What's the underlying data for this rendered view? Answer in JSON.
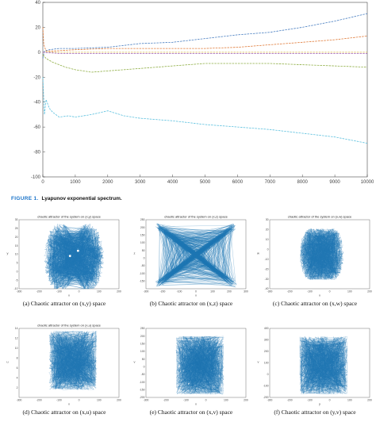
{
  "figure1": {
    "label": "FIGURE 1.",
    "caption": "Lyapunov exponential spectrum."
  },
  "chart_data": [
    {
      "type": "line",
      "title": "",
      "xlabel": "",
      "ylabel": "",
      "xlim": [
        0,
        10000
      ],
      "ylim": [
        -100,
        40
      ],
      "xticks": [
        0,
        1000,
        2000,
        3000,
        4000,
        5000,
        6000,
        7000,
        8000,
        9000,
        10000
      ],
      "yticks": [
        -100,
        -80,
        -60,
        -40,
        -20,
        0,
        20,
        40
      ],
      "series": [
        {
          "color": "#4a7fc1",
          "x": [
            0,
            50,
            200,
            500,
            1000,
            2000,
            3000,
            4000,
            5000,
            6000,
            7000,
            8000,
            9000,
            10000
          ],
          "y": [
            -5,
            1,
            2,
            3,
            3,
            4,
            7,
            8,
            11,
            14,
            16,
            20,
            25,
            31
          ]
        },
        {
          "color": "#e07b39",
          "x": [
            0,
            30,
            100,
            300,
            1000,
            2000,
            3000,
            4000,
            5000,
            6000,
            7000,
            8000,
            9000,
            10000
          ],
          "y": [
            20,
            6,
            1,
            1,
            2,
            3,
            3,
            3,
            3,
            4,
            6,
            8,
            10,
            13
          ]
        },
        {
          "color": "#d9b84a",
          "x": [
            0,
            500,
            1000,
            2000,
            3000,
            4000,
            5000,
            6000,
            7000,
            8000,
            9000,
            10000
          ],
          "y": [
            0,
            0,
            0,
            0,
            0,
            0,
            0,
            0,
            0,
            0,
            0,
            0
          ]
        },
        {
          "color": "#9b59b6",
          "x": [
            0,
            500,
            1000,
            2000,
            3000,
            4000,
            5000,
            6000,
            7000,
            8000,
            9000,
            10000
          ],
          "y": [
            0,
            -1,
            -1,
            -1,
            -1,
            -1,
            -1,
            -1,
            -1,
            -1,
            -1,
            -1
          ]
        },
        {
          "color": "#8fae45",
          "x": [
            0,
            100,
            300,
            700,
            1000,
            1500,
            2000,
            3000,
            4000,
            5000,
            6000,
            7000,
            8000,
            9000,
            10000
          ],
          "y": [
            -2,
            -5,
            -8,
            -12,
            -14,
            -16,
            -15,
            -13,
            -11,
            -9,
            -9,
            -9,
            -10,
            -11,
            -12
          ]
        },
        {
          "color": "#5bc0de",
          "x": [
            0,
            50,
            100,
            200,
            300,
            500,
            800,
            1000,
            1500,
            2000,
            2500,
            3000,
            4000,
            5000,
            6000,
            7000,
            8000,
            9000,
            10000
          ],
          "y": [
            -20,
            -50,
            -38,
            -45,
            -48,
            -52,
            -51,
            -52,
            -50,
            -47,
            -51,
            -53,
            -55,
            -58,
            -60,
            -62,
            -65,
            -68,
            -73
          ]
        }
      ]
    },
    {
      "type": "scatter",
      "title": "chaotic attractor of the system on (x,y) space",
      "xlabel": "x",
      "ylabel": "y",
      "xlim": [
        -300,
        200
      ],
      "ylim": [
        -10,
        30
      ],
      "xticks": [
        -300,
        -200,
        -100,
        0,
        100,
        200
      ],
      "yticks": [
        -10,
        -5,
        0,
        5,
        10,
        15,
        20,
        25,
        30
      ]
    },
    {
      "type": "scatter",
      "title": "chaotic attractor of the system on (x,z) space",
      "xlabel": "x",
      "ylabel": "z",
      "xlim": [
        -300,
        300
      ],
      "ylim": [
        -200,
        250
      ],
      "xticks": [
        -300,
        -200,
        -100,
        0,
        100,
        200,
        300
      ],
      "yticks": [
        -150,
        -100,
        -50,
        0,
        50,
        100,
        150,
        200,
        250
      ]
    },
    {
      "type": "scatter",
      "title": "chaotic attractor of the system on (x,w) space",
      "xlabel": "x",
      "ylabel": "w",
      "xlim": [
        -300,
        200
      ],
      "ylim": [
        -40,
        30
      ],
      "xticks": [
        -300,
        -200,
        -100,
        0,
        100,
        200
      ],
      "yticks": [
        -40,
        -30,
        -20,
        -10,
        0,
        10,
        20,
        30
      ]
    },
    {
      "type": "scatter",
      "title": "chaotic attractor of the system on (x,u) space",
      "xlabel": "x",
      "ylabel": "u",
      "xlim": [
        -300,
        200
      ],
      "ylim": [
        0,
        14
      ],
      "xticks": [
        -300,
        -200,
        -100,
        0,
        100,
        200
      ],
      "yticks": [
        2,
        4,
        6,
        8,
        10,
        12,
        14
      ]
    },
    {
      "type": "scatter",
      "title": "",
      "xlabel": "x",
      "ylabel": "v",
      "xlim": [
        -300,
        200
      ],
      "ylim": [
        -200,
        250
      ],
      "xticks": [
        -300,
        -200,
        -100,
        0,
        100,
        200
      ],
      "yticks": [
        -200,
        -150,
        -100,
        -50,
        0,
        50,
        100,
        150,
        200,
        250
      ]
    },
    {
      "type": "scatter",
      "title": "",
      "xlabel": "y",
      "ylabel": "v",
      "xlim": [
        -300,
        200
      ],
      "ylim": [
        -200,
        400
      ],
      "xticks": [
        -300,
        -200,
        -100,
        0,
        100,
        200
      ],
      "yticks": [
        -200,
        -100,
        0,
        100,
        200,
        300,
        400
      ]
    }
  ],
  "panels": [
    {
      "caption": "(a) Chaotic attractor on (x,y) space"
    },
    {
      "caption": "(b) Chaotic attractor on (x,z) space"
    },
    {
      "caption": "(c) Chaotic attractor on (x,w) space"
    },
    {
      "caption": "(d) Chaotic attractor on (x,u) space"
    },
    {
      "caption": "(e) Chaotic attractor on (x,v) space"
    },
    {
      "caption": "(f) Chaotic attractor on (y,v) space"
    }
  ],
  "colors": {
    "attractor": "#1f77b4",
    "figure_label": "#1a73c9"
  }
}
